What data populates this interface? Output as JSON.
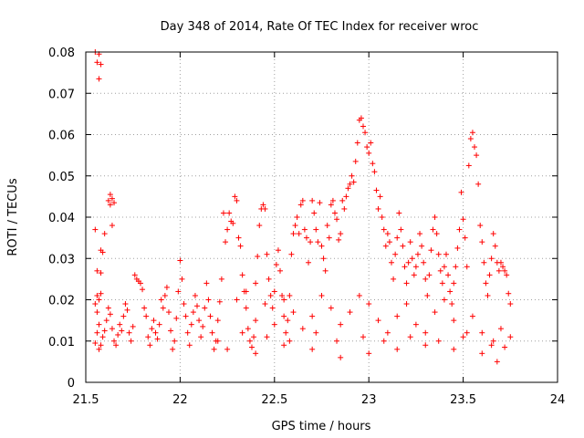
{
  "chart_data": {
    "type": "scatter",
    "title": "Day 348 of 2014, Rate Of TEC Index for receiver wroc",
    "xlabel": "GPS time / hours",
    "ylabel": "ROTI / TECUs",
    "xlim": [
      21.5,
      24
    ],
    "ylim": [
      0,
      0.08
    ],
    "grid": true,
    "marker": "+",
    "color": "#ff0000",
    "x_ticks": [
      "21.5",
      "22",
      "22.5",
      "23",
      "23.5",
      "24"
    ],
    "x_tick_values": [
      21.5,
      22,
      22.5,
      23,
      23.5,
      24
    ],
    "y_ticks": [
      "0",
      "0.01",
      "0.02",
      "0.03",
      "0.04",
      "0.05",
      "0.06",
      "0.07",
      "0.08"
    ],
    "y_tick_values": [
      0,
      0.01,
      0.02,
      0.03,
      0.04,
      0.05,
      0.06,
      0.07,
      0.08
    ],
    "series": [
      {
        "name": "ROTI",
        "points": [
          [
            21.55,
            0.08
          ],
          [
            21.57,
            0.0795
          ],
          [
            21.56,
            0.0775
          ],
          [
            21.58,
            0.077
          ],
          [
            21.57,
            0.0735
          ],
          [
            21.55,
            0.037
          ],
          [
            21.58,
            0.032
          ],
          [
            21.59,
            0.0315
          ],
          [
            21.6,
            0.036
          ],
          [
            21.62,
            0.044
          ],
          [
            21.63,
            0.0455
          ],
          [
            21.64,
            0.0445
          ],
          [
            21.65,
            0.0435
          ],
          [
            21.63,
            0.043
          ],
          [
            21.64,
            0.038
          ],
          [
            21.56,
            0.027
          ],
          [
            21.58,
            0.0265
          ],
          [
            21.56,
            0.021
          ],
          [
            21.57,
            0.02
          ],
          [
            21.58,
            0.0215
          ],
          [
            21.55,
            0.019
          ],
          [
            21.56,
            0.017
          ],
          [
            21.57,
            0.014
          ],
          [
            21.56,
            0.012
          ],
          [
            21.55,
            0.0095
          ],
          [
            21.57,
            0.008
          ],
          [
            21.58,
            0.009
          ],
          [
            21.59,
            0.011
          ],
          [
            21.6,
            0.0125
          ],
          [
            21.61,
            0.015
          ],
          [
            21.62,
            0.018
          ],
          [
            21.63,
            0.0165
          ],
          [
            21.64,
            0.013
          ],
          [
            21.65,
            0.01
          ],
          [
            21.66,
            0.009
          ],
          [
            21.67,
            0.0115
          ],
          [
            21.68,
            0.014
          ],
          [
            21.69,
            0.0125
          ],
          [
            21.7,
            0.016
          ],
          [
            21.71,
            0.019
          ],
          [
            21.72,
            0.0175
          ],
          [
            21.73,
            0.012
          ],
          [
            21.74,
            0.01
          ],
          [
            21.75,
            0.0135
          ],
          [
            21.76,
            0.026
          ],
          [
            21.77,
            0.025
          ],
          [
            21.78,
            0.0245
          ],
          [
            21.79,
            0.024
          ],
          [
            21.8,
            0.0225
          ],
          [
            21.81,
            0.018
          ],
          [
            21.82,
            0.016
          ],
          [
            21.83,
            0.011
          ],
          [
            21.84,
            0.009
          ],
          [
            21.85,
            0.013
          ],
          [
            21.86,
            0.015
          ],
          [
            21.87,
            0.012
          ],
          [
            21.88,
            0.0105
          ],
          [
            21.89,
            0.014
          ],
          [
            21.9,
            0.02
          ],
          [
            21.91,
            0.018
          ],
          [
            21.92,
            0.021
          ],
          [
            21.93,
            0.023
          ],
          [
            21.94,
            0.017
          ],
          [
            21.95,
            0.0125
          ],
          [
            21.96,
            0.008
          ],
          [
            21.97,
            0.01
          ],
          [
            21.98,
            0.0155
          ],
          [
            21.99,
            0.022
          ],
          [
            22.0,
            0.0295
          ],
          [
            22.01,
            0.025
          ],
          [
            22.02,
            0.019
          ],
          [
            22.03,
            0.016
          ],
          [
            22.04,
            0.012
          ],
          [
            22.05,
            0.009
          ],
          [
            22.06,
            0.014
          ],
          [
            22.07,
            0.017
          ],
          [
            22.08,
            0.021
          ],
          [
            22.09,
            0.0185
          ],
          [
            22.1,
            0.015
          ],
          [
            22.11,
            0.011
          ],
          [
            22.12,
            0.0135
          ],
          [
            22.13,
            0.018
          ],
          [
            22.14,
            0.024
          ],
          [
            22.15,
            0.02
          ],
          [
            22.16,
            0.016
          ],
          [
            22.17,
            0.012
          ],
          [
            22.18,
            0.008
          ],
          [
            22.19,
            0.01
          ],
          [
            22.2,
            0.015
          ],
          [
            22.21,
            0.0195
          ],
          [
            22.22,
            0.025
          ],
          [
            22.23,
            0.041
          ],
          [
            22.24,
            0.034
          ],
          [
            22.25,
            0.037
          ],
          [
            22.26,
            0.041
          ],
          [
            22.27,
            0.039
          ],
          [
            22.28,
            0.0385
          ],
          [
            22.29,
            0.045
          ],
          [
            22.3,
            0.044
          ],
          [
            22.31,
            0.035
          ],
          [
            22.32,
            0.033
          ],
          [
            22.33,
            0.026
          ],
          [
            22.34,
            0.022
          ],
          [
            22.35,
            0.018
          ],
          [
            22.36,
            0.013
          ],
          [
            22.37,
            0.01
          ],
          [
            22.38,
            0.0085
          ],
          [
            22.39,
            0.011
          ],
          [
            22.4,
            0.015
          ],
          [
            22.41,
            0.0305
          ],
          [
            22.42,
            0.038
          ],
          [
            22.43,
            0.042
          ],
          [
            22.44,
            0.043
          ],
          [
            22.45,
            0.042
          ],
          [
            22.46,
            0.031
          ],
          [
            22.47,
            0.025
          ],
          [
            22.48,
            0.021
          ],
          [
            22.49,
            0.018
          ],
          [
            22.5,
            0.022
          ],
          [
            22.51,
            0.0285
          ],
          [
            22.52,
            0.032
          ],
          [
            22.53,
            0.027
          ],
          [
            22.54,
            0.021
          ],
          [
            22.55,
            0.016
          ],
          [
            22.56,
            0.012
          ],
          [
            22.57,
            0.015
          ],
          [
            22.58,
            0.021
          ],
          [
            22.59,
            0.031
          ],
          [
            22.6,
            0.036
          ],
          [
            22.61,
            0.038
          ],
          [
            22.62,
            0.04
          ],
          [
            22.63,
            0.036
          ],
          [
            22.64,
            0.043
          ],
          [
            22.65,
            0.044
          ],
          [
            22.66,
            0.037
          ],
          [
            22.67,
            0.035
          ],
          [
            22.68,
            0.029
          ],
          [
            22.69,
            0.034
          ],
          [
            22.7,
            0.044
          ],
          [
            22.71,
            0.041
          ],
          [
            22.72,
            0.037
          ],
          [
            22.73,
            0.034
          ],
          [
            22.74,
            0.0435
          ],
          [
            22.75,
            0.033
          ],
          [
            22.76,
            0.03
          ],
          [
            22.77,
            0.027
          ],
          [
            22.78,
            0.038
          ],
          [
            22.79,
            0.035
          ],
          [
            22.8,
            0.043
          ],
          [
            22.81,
            0.044
          ],
          [
            22.82,
            0.041
          ],
          [
            22.83,
            0.0395
          ],
          [
            22.84,
            0.0345
          ],
          [
            22.85,
            0.036
          ],
          [
            22.86,
            0.044
          ],
          [
            22.87,
            0.042
          ],
          [
            22.88,
            0.045
          ],
          [
            22.89,
            0.047
          ],
          [
            22.9,
            0.048
          ],
          [
            22.91,
            0.05
          ],
          [
            22.92,
            0.0485
          ],
          [
            22.93,
            0.0535
          ],
          [
            22.94,
            0.058
          ],
          [
            22.95,
            0.0635
          ],
          [
            22.96,
            0.064
          ],
          [
            22.97,
            0.062
          ],
          [
            22.98,
            0.0605
          ],
          [
            22.99,
            0.057
          ],
          [
            23.0,
            0.0555
          ],
          [
            23.01,
            0.058
          ],
          [
            23.02,
            0.053
          ],
          [
            23.03,
            0.051
          ],
          [
            23.04,
            0.0465
          ],
          [
            23.05,
            0.042
          ],
          [
            23.06,
            0.045
          ],
          [
            23.07,
            0.04
          ],
          [
            23.08,
            0.037
          ],
          [
            23.09,
            0.033
          ],
          [
            23.1,
            0.036
          ],
          [
            23.11,
            0.034
          ],
          [
            23.12,
            0.029
          ],
          [
            23.13,
            0.025
          ],
          [
            23.14,
            0.031
          ],
          [
            23.15,
            0.035
          ],
          [
            23.16,
            0.041
          ],
          [
            23.17,
            0.037
          ],
          [
            23.18,
            0.033
          ],
          [
            23.19,
            0.028
          ],
          [
            23.2,
            0.024
          ],
          [
            23.21,
            0.029
          ],
          [
            23.22,
            0.034
          ],
          [
            23.23,
            0.03
          ],
          [
            23.24,
            0.026
          ],
          [
            23.25,
            0.028
          ],
          [
            23.26,
            0.031
          ],
          [
            23.27,
            0.036
          ],
          [
            23.28,
            0.033
          ],
          [
            23.29,
            0.029
          ],
          [
            23.3,
            0.025
          ],
          [
            23.31,
            0.021
          ],
          [
            23.32,
            0.026
          ],
          [
            23.33,
            0.032
          ],
          [
            23.34,
            0.037
          ],
          [
            23.35,
            0.04
          ],
          [
            23.36,
            0.036
          ],
          [
            23.37,
            0.031
          ],
          [
            23.38,
            0.027
          ],
          [
            23.39,
            0.024
          ],
          [
            23.4,
            0.028
          ],
          [
            23.41,
            0.031
          ],
          [
            23.42,
            0.026
          ],
          [
            23.43,
            0.022
          ],
          [
            23.44,
            0.019
          ],
          [
            23.45,
            0.024
          ],
          [
            23.46,
            0.028
          ],
          [
            23.47,
            0.0325
          ],
          [
            23.48,
            0.037
          ],
          [
            23.49,
            0.046
          ],
          [
            23.5,
            0.0395
          ],
          [
            23.51,
            0.035
          ],
          [
            23.52,
            0.028
          ],
          [
            23.53,
            0.0525
          ],
          [
            23.54,
            0.059
          ],
          [
            23.55,
            0.0605
          ],
          [
            23.56,
            0.057
          ],
          [
            23.57,
            0.055
          ],
          [
            23.58,
            0.048
          ],
          [
            23.59,
            0.038
          ],
          [
            23.6,
            0.034
          ],
          [
            23.61,
            0.029
          ],
          [
            23.62,
            0.024
          ],
          [
            23.63,
            0.021
          ],
          [
            23.64,
            0.026
          ],
          [
            23.65,
            0.03
          ],
          [
            23.66,
            0.036
          ],
          [
            23.67,
            0.033
          ],
          [
            23.68,
            0.029
          ],
          [
            23.69,
            0.027
          ],
          [
            23.7,
            0.029
          ],
          [
            23.71,
            0.028
          ],
          [
            23.72,
            0.027
          ],
          [
            23.73,
            0.026
          ],
          [
            23.74,
            0.0215
          ],
          [
            23.75,
            0.019
          ],
          [
            22.3,
            0.02
          ],
          [
            22.35,
            0.022
          ],
          [
            22.4,
            0.024
          ],
          [
            22.45,
            0.019
          ],
          [
            22.5,
            0.014
          ],
          [
            22.55,
            0.02
          ],
          [
            22.6,
            0.017
          ],
          [
            22.65,
            0.013
          ],
          [
            22.7,
            0.016
          ],
          [
            22.75,
            0.021
          ],
          [
            22.8,
            0.018
          ],
          [
            22.85,
            0.014
          ],
          [
            22.9,
            0.017
          ],
          [
            22.95,
            0.021
          ],
          [
            23.0,
            0.019
          ],
          [
            23.05,
            0.015
          ],
          [
            23.1,
            0.012
          ],
          [
            23.15,
            0.016
          ],
          [
            23.2,
            0.019
          ],
          [
            23.25,
            0.014
          ],
          [
            23.3,
            0.012
          ],
          [
            23.35,
            0.017
          ],
          [
            23.4,
            0.02
          ],
          [
            23.45,
            0.015
          ],
          [
            23.5,
            0.011
          ],
          [
            23.55,
            0.016
          ],
          [
            23.6,
            0.012
          ],
          [
            23.65,
            0.009
          ],
          [
            23.7,
            0.013
          ],
          [
            23.75,
            0.011
          ],
          [
            22.25,
            0.008
          ],
          [
            22.4,
            0.007
          ],
          [
            22.55,
            0.009
          ],
          [
            22.7,
            0.008
          ],
          [
            22.85,
            0.006
          ],
          [
            23.0,
            0.007
          ],
          [
            23.15,
            0.008
          ],
          [
            23.3,
            0.009
          ],
          [
            23.45,
            0.008
          ],
          [
            23.6,
            0.007
          ],
          [
            23.68,
            0.005
          ],
          [
            23.72,
            0.0085
          ],
          [
            22.2,
            0.01
          ],
          [
            22.33,
            0.012
          ],
          [
            22.46,
            0.011
          ],
          [
            22.58,
            0.01
          ],
          [
            22.72,
            0.012
          ],
          [
            22.83,
            0.01
          ],
          [
            22.97,
            0.011
          ],
          [
            23.08,
            0.01
          ],
          [
            23.22,
            0.011
          ],
          [
            23.37,
            0.01
          ],
          [
            23.52,
            0.012
          ],
          [
            23.66,
            0.01
          ]
        ]
      }
    ]
  }
}
